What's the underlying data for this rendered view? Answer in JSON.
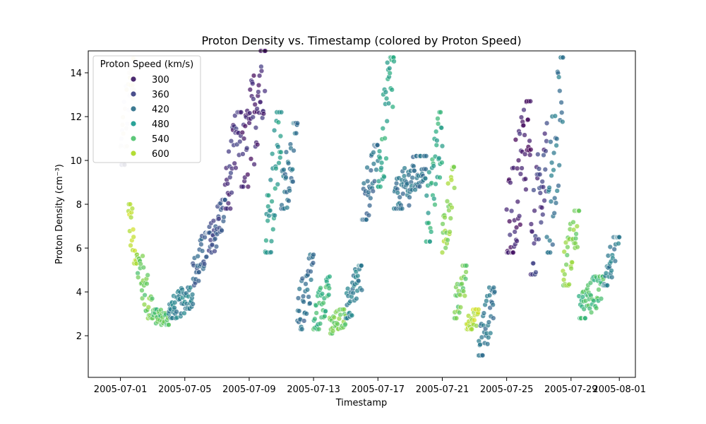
{
  "chart_data": {
    "type": "scatter",
    "title": "Proton Density vs. Timestamp (colored by Proton Speed)",
    "xlabel": "Timestamp",
    "ylabel": "Proton Density (cm⁻³)",
    "xlim": [
      "2005-06-29",
      "2005-08-02"
    ],
    "ylim": [
      0.1,
      15
    ],
    "x_ticks": [
      "2005-07-01",
      "2005-07-05",
      "2005-07-09",
      "2005-07-13",
      "2005-07-17",
      "2005-07-21",
      "2005-07-25",
      "2005-07-29",
      "2005-08-01"
    ],
    "y_ticks": [
      2,
      4,
      6,
      8,
      10,
      12,
      14
    ],
    "grid": false,
    "legend": {
      "title": "Proton Speed (km/s)",
      "placement": "top-left",
      "entries": [
        {
          "label": "300",
          "color": "#4b2a6f"
        },
        {
          "label": "360",
          "color": "#4a4f8c"
        },
        {
          "label": "420",
          "color": "#3c7a92"
        },
        {
          "label": "480",
          "color": "#2aa398"
        },
        {
          "label": "540",
          "color": "#5cc779"
        },
        {
          "label": "600",
          "color": "#b3dd35"
        }
      ]
    },
    "color_scale": {
      "variable": "Proton Speed",
      "stops": [
        {
          "speed": 290,
          "color": "#440154"
        },
        {
          "speed": 330,
          "color": "#46307e"
        },
        {
          "speed": 370,
          "color": "#3b528b"
        },
        {
          "speed": 420,
          "color": "#2c728e"
        },
        {
          "speed": 470,
          "color": "#21918c"
        },
        {
          "speed": 510,
          "color": "#28ae80"
        },
        {
          "speed": 550,
          "color": "#5ec962"
        },
        {
          "speed": 600,
          "color": "#addc30"
        },
        {
          "speed": 640,
          "color": "#fde725"
        },
        {
          "speed": 700,
          "color": "#e4e4ee"
        }
      ]
    },
    "series_segments": [
      {
        "start": "2005-07-01T00:00",
        "end": "2005-07-02T00:00",
        "density": [
          10.0,
          15.0
        ],
        "speed": 700
      },
      {
        "start": "2005-07-01T12:00",
        "end": "2005-07-02T00:00",
        "density": [
          7.8,
          5.5
        ],
        "speed": 600
      },
      {
        "start": "2005-07-02T00:00",
        "end": "2005-07-03T00:00",
        "density": [
          5.5,
          3.0
        ],
        "speed": 560
      },
      {
        "start": "2005-07-03T00:00",
        "end": "2005-07-04T00:00",
        "density": [
          3.0,
          2.7
        ],
        "speed": 540
      },
      {
        "start": "2005-07-04T00:00",
        "end": "2005-07-05T12:00",
        "density": [
          3.0,
          4.0
        ],
        "speed": 440
      },
      {
        "start": "2005-07-05T12:00",
        "end": "2005-07-06T12:00",
        "density": [
          4.5,
          6.5
        ],
        "speed": 390
      },
      {
        "start": "2005-07-06T12:00",
        "end": "2005-07-07T12:00",
        "density": [
          6.0,
          8.0
        ],
        "speed": 370
      },
      {
        "start": "2005-07-07T12:00",
        "end": "2005-07-08T12:00",
        "density": [
          8.0,
          12.0
        ],
        "speed": 330
      },
      {
        "start": "2005-07-08T12:00",
        "end": "2005-07-10T00:00",
        "density": [
          9.0,
          14.8
        ],
        "speed": 320
      },
      {
        "start": "2005-07-10T00:00",
        "end": "2005-07-11T00:00",
        "density": [
          6.0,
          12.0
        ],
        "speed": 480
      },
      {
        "start": "2005-07-11T00:00",
        "end": "2005-07-12T00:00",
        "density": [
          8.0,
          11.5
        ],
        "speed": 420
      },
      {
        "start": "2005-07-12T00:00",
        "end": "2005-07-13T00:00",
        "density": [
          2.5,
          5.5
        ],
        "speed": 410
      },
      {
        "start": "2005-07-13T00:00",
        "end": "2005-07-14T00:00",
        "density": [
          2.5,
          4.5
        ],
        "speed": 520
      },
      {
        "start": "2005-07-14T00:00",
        "end": "2005-07-15T00:00",
        "density": [
          2.3,
          3.0
        ],
        "speed": 560
      },
      {
        "start": "2005-07-15T00:00",
        "end": "2005-07-16T00:00",
        "density": [
          3.0,
          5.0
        ],
        "speed": 440
      },
      {
        "start": "2005-07-16T00:00",
        "end": "2005-07-17T00:00",
        "density": [
          7.5,
          10.5
        ],
        "speed": 410
      },
      {
        "start": "2005-07-17T00:00",
        "end": "2005-07-18T00:00",
        "density": [
          9.0,
          14.5
        ],
        "speed": 500
      },
      {
        "start": "2005-07-18T00:00",
        "end": "2005-07-20T00:00",
        "density": [
          8.0,
          10.0
        ],
        "speed": 420
      },
      {
        "start": "2005-07-20T00:00",
        "end": "2005-07-21T00:00",
        "density": [
          6.5,
          12.0
        ],
        "speed": 500
      },
      {
        "start": "2005-07-21T00:00",
        "end": "2005-07-21T18:00",
        "density": [
          6.0,
          9.5
        ],
        "speed": 580
      },
      {
        "start": "2005-07-21T18:00",
        "end": "2005-07-22T12:00",
        "density": [
          3.0,
          5.0
        ],
        "speed": 560
      },
      {
        "start": "2005-07-22T12:00",
        "end": "2005-07-23T06:00",
        "density": [
          2.5,
          3.0
        ],
        "speed": 600
      },
      {
        "start": "2005-07-23T06:00",
        "end": "2005-07-24T06:00",
        "density": [
          1.3,
          4.0
        ],
        "speed": 420
      },
      {
        "start": "2005-07-25T00:00",
        "end": "2005-07-26T12:00",
        "density": [
          6.0,
          12.5
        ],
        "speed": 310
      },
      {
        "start": "2005-07-26T12:00",
        "end": "2005-07-27T12:00",
        "density": [
          5.0,
          11.5
        ],
        "speed": 340
      },
      {
        "start": "2005-07-27T12:00",
        "end": "2005-07-28T12:00",
        "density": [
          6.0,
          14.5
        ],
        "speed": 420
      },
      {
        "start": "2005-07-28T12:00",
        "end": "2005-07-29T12:00",
        "density": [
          4.5,
          7.5
        ],
        "speed": 570
      },
      {
        "start": "2005-07-29T12:00",
        "end": "2005-07-31T00:00",
        "density": [
          3.0,
          4.5
        ],
        "speed": 530
      },
      {
        "start": "2005-07-31T00:00",
        "end": "2005-08-01T00:00",
        "density": [
          4.5,
          6.3
        ],
        "speed": 430
      }
    ]
  }
}
